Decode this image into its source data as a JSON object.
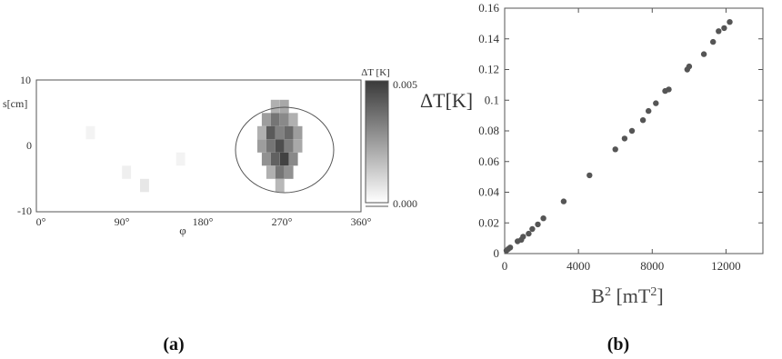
{
  "panel_a": {
    "label": "(a)",
    "ylabel": "s[cm]",
    "xlabel": "φ",
    "yticks": [
      "10",
      "0",
      "-10"
    ],
    "xticks": [
      "0°",
      "90°",
      "180°",
      "270°",
      "360°"
    ],
    "xlim": [
      0,
      360
    ],
    "ylim": [
      -10,
      10
    ],
    "colorbar": {
      "title": "ΔT [K]",
      "max_label": "0.005",
      "min_label": "0.000",
      "range": [
        0,
        0.005
      ]
    },
    "heatmap_cells": [
      [
        265,
        6,
        0.002
      ],
      [
        275,
        6,
        0.0022
      ],
      [
        255,
        4,
        0.0025
      ],
      [
        265,
        4,
        0.0035
      ],
      [
        275,
        4,
        0.003
      ],
      [
        285,
        4,
        0.002
      ],
      [
        250,
        2,
        0.002
      ],
      [
        260,
        2,
        0.0042
      ],
      [
        270,
        2,
        0.0032
      ],
      [
        280,
        2,
        0.0038
      ],
      [
        290,
        2,
        0.0025
      ],
      [
        250,
        0,
        0.0025
      ],
      [
        260,
        0,
        0.0035
      ],
      [
        270,
        0,
        0.0045
      ],
      [
        280,
        0,
        0.0033
      ],
      [
        290,
        0,
        0.0022
      ],
      [
        255,
        -2,
        0.0028
      ],
      [
        265,
        -2,
        0.004
      ],
      [
        275,
        -2,
        0.0048
      ],
      [
        285,
        -2,
        0.003
      ],
      [
        260,
        -4,
        0.002
      ],
      [
        270,
        -4,
        0.0035
      ],
      [
        280,
        -4,
        0.0028
      ],
      [
        270,
        -6,
        0.0018
      ],
      [
        120,
        -6,
        0.0006
      ],
      [
        100,
        -4,
        0.0004
      ],
      [
        60,
        2,
        0.0003
      ],
      [
        160,
        -2,
        0.0003
      ]
    ]
  },
  "panel_b": {
    "label": "(b)",
    "ylabel": "ΔT[K]",
    "xlabel": "B² [mT²]"
  },
  "chart_data": [
    {
      "type": "heatmap",
      "panel": "(a)",
      "xlabel": "φ",
      "ylabel": "s[cm]",
      "xlim": [
        0,
        360
      ],
      "ylim": [
        -10,
        10
      ],
      "xticks": [
        "0°",
        "90°",
        "180°",
        "270°",
        "360°"
      ],
      "yticks": [
        "10",
        "0",
        "-10"
      ],
      "colorbar": {
        "title": "ΔT [K]",
        "range": [
          0,
          0.005
        ]
      },
      "annotation": "circle around region centered near φ=270°, s=0"
    },
    {
      "type": "scatter",
      "panel": "(b)",
      "xlabel": "B² [mT²]",
      "ylabel": "ΔT[K]",
      "xlim": [
        0,
        14000
      ],
      "ylim": [
        0,
        0.16
      ],
      "xticks": [
        0,
        4000,
        8000,
        12000
      ],
      "yticks": [
        0,
        0.02,
        0.04,
        0.06,
        0.08,
        0.1,
        0.12,
        0.14,
        0.16
      ],
      "grid": false,
      "series": [
        {
          "color": "#555555",
          "x": [
            100,
            200,
            300,
            700,
            900,
            1000,
            1300,
            1500,
            1800,
            2100,
            3200,
            4600,
            6000,
            6500,
            6900,
            7500,
            7800,
            8200,
            8700,
            8900,
            9900,
            10000,
            10800,
            11300,
            11600,
            11900,
            12200
          ],
          "y": [
            0.002,
            0.003,
            0.004,
            0.008,
            0.009,
            0.011,
            0.013,
            0.016,
            0.019,
            0.023,
            0.034,
            0.051,
            0.068,
            0.075,
            0.08,
            0.087,
            0.093,
            0.098,
            0.106,
            0.107,
            0.12,
            0.122,
            0.13,
            0.138,
            0.145,
            0.147,
            0.151
          ]
        }
      ]
    }
  ]
}
